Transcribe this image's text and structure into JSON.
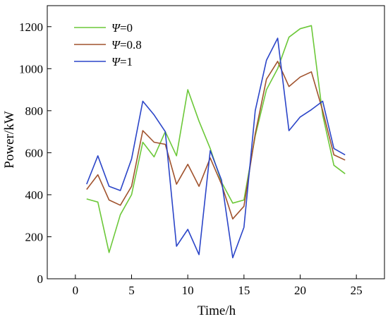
{
  "chart_data": {
    "type": "line",
    "xlabel": "Time/h",
    "ylabel": "Power/kW",
    "xlim": [
      -2.5,
      27.5
    ],
    "ylim": [
      0,
      1300
    ],
    "xticks": [
      0,
      5,
      10,
      15,
      20,
      25
    ],
    "yticks": [
      0,
      200,
      400,
      600,
      800,
      1000,
      1200
    ],
    "grid": false,
    "legend_position": "top-left",
    "x": [
      1,
      2,
      3,
      4,
      5,
      6,
      7,
      8,
      9,
      10,
      11,
      12,
      13,
      14,
      15,
      16,
      17,
      18,
      19,
      20,
      21,
      22,
      23,
      24
    ],
    "series": [
      {
        "symbol": "Ψ",
        "name": "=0",
        "color": "#6cc839",
        "values": [
          380,
          365,
          125,
          305,
          400,
          650,
          580,
          700,
          585,
          900,
          750,
          620,
          460,
          360,
          375,
          680,
          900,
          1000,
          1150,
          1190,
          1205,
          780,
          540,
          500
        ]
      },
      {
        "symbol": "Ψ",
        "name": "=0.8",
        "color": "#a0522d",
        "values": [
          425,
          495,
          375,
          350,
          440,
          705,
          650,
          640,
          450,
          545,
          440,
          575,
          450,
          285,
          345,
          690,
          950,
          1035,
          915,
          960,
          985,
          800,
          590,
          565
        ]
      },
      {
        "symbol": "Ψ",
        "name": "=1",
        "color": "#2b45c8",
        "values": [
          450,
          585,
          440,
          420,
          570,
          845,
          780,
          700,
          155,
          235,
          115,
          610,
          470,
          100,
          245,
          800,
          1040,
          1145,
          705,
          770,
          805,
          845,
          620,
          590
        ]
      }
    ]
  }
}
